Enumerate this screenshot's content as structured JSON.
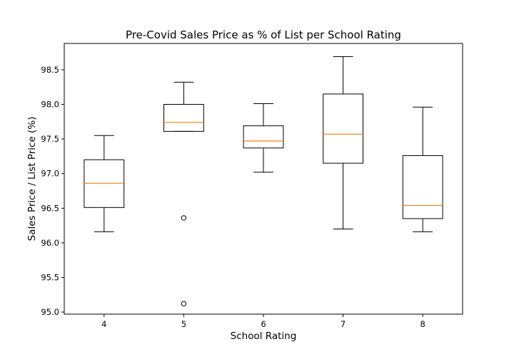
{
  "chart_data": {
    "type": "boxplot",
    "title": "Pre-Covid Sales Price as % of List per School Rating",
    "xlabel": "School Rating",
    "ylabel": "Sales Price / List Price (%)",
    "ylim": [
      94.97,
      98.88
    ],
    "yticks": [
      95.0,
      95.5,
      96.0,
      96.5,
      97.0,
      97.5,
      98.0,
      98.5
    ],
    "ytick_labels": [
      "95.0",
      "95.5",
      "96.0",
      "96.5",
      "97.0",
      "97.5",
      "98.0",
      "98.5"
    ],
    "grid": false,
    "colors": {
      "box": "#000000",
      "median": "#ff7f0e",
      "flier": "#000000"
    },
    "categories": [
      "4",
      "5",
      "6",
      "7",
      "8"
    ],
    "boxes": [
      {
        "category": "4",
        "whisker_low": 96.16,
        "q1": 96.51,
        "median": 96.86,
        "q3": 97.2,
        "whisker_high": 97.55,
        "fliers": []
      },
      {
        "category": "5",
        "whisker_low": 97.61,
        "q1": 97.61,
        "median": 97.74,
        "q3": 98.0,
        "whisker_high": 98.32,
        "fliers": [
          96.36,
          95.12
        ]
      },
      {
        "category": "6",
        "whisker_low": 97.02,
        "q1": 97.37,
        "median": 97.47,
        "q3": 97.69,
        "whisker_high": 98.01,
        "fliers": []
      },
      {
        "category": "7",
        "whisker_low": 96.2,
        "q1": 97.15,
        "median": 97.57,
        "q3": 98.15,
        "whisker_high": 98.69,
        "fliers": []
      },
      {
        "category": "8",
        "whisker_low": 96.16,
        "q1": 96.35,
        "median": 96.54,
        "q3": 97.26,
        "whisker_high": 97.96,
        "fliers": []
      }
    ]
  }
}
